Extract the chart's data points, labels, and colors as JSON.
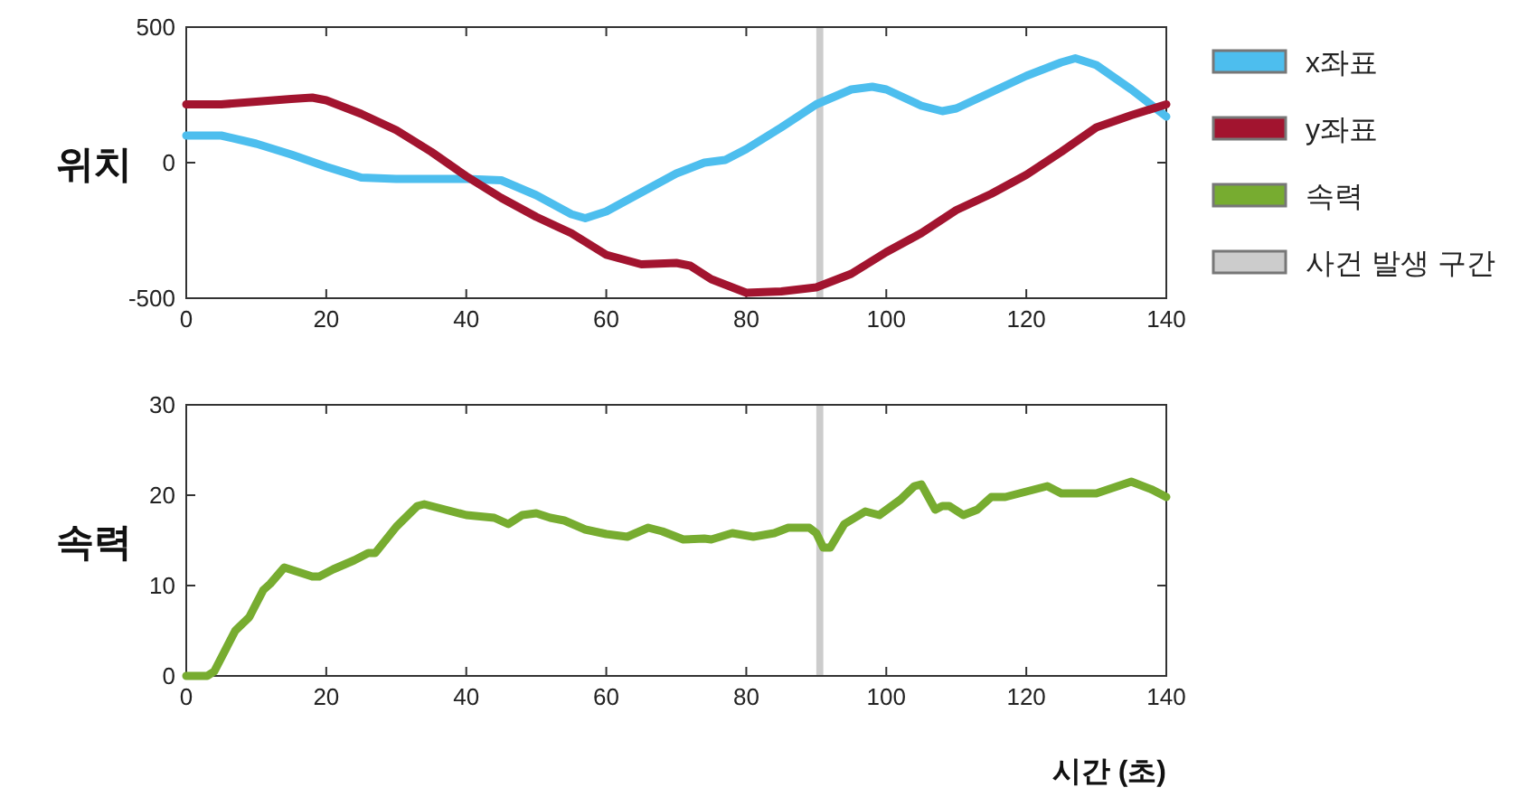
{
  "chart_data": [
    {
      "type": "line",
      "ylabel": "위치",
      "xlim": [
        0,
        140
      ],
      "xticks": [
        0,
        20,
        40,
        60,
        80,
        100,
        120,
        140
      ],
      "ylim": [
        -500,
        500
      ],
      "yticks": [
        -500,
        0,
        500
      ],
      "legend": "right",
      "line_style": "solid",
      "series": [
        {
          "name": "x좌표",
          "color": "#4dbeee",
          "x": [
            0,
            5,
            10,
            15,
            20,
            25,
            30,
            35,
            40,
            45,
            50,
            55,
            57,
            60,
            65,
            70,
            74,
            77,
            80,
            85,
            90,
            95,
            98,
            100,
            105,
            108,
            110,
            115,
            120,
            125,
            127,
            130,
            135,
            140
          ],
          "values": [
            100,
            100,
            70,
            30,
            -15,
            -55,
            -60,
            -60,
            -60,
            -65,
            -120,
            -190,
            -205,
            -180,
            -110,
            -40,
            0,
            10,
            50,
            130,
            215,
            270,
            280,
            270,
            210,
            190,
            200,
            260,
            320,
            370,
            385,
            360,
            270,
            170
          ]
        },
        {
          "name": "y좌표",
          "color": "#a2142f",
          "x": [
            0,
            5,
            10,
            15,
            18,
            20,
            25,
            30,
            35,
            40,
            45,
            50,
            55,
            60,
            65,
            70,
            72,
            75,
            80,
            85,
            90,
            95,
            100,
            105,
            110,
            115,
            120,
            125,
            130,
            135,
            140
          ],
          "values": [
            215,
            215,
            225,
            235,
            240,
            230,
            180,
            120,
            40,
            -50,
            -130,
            -200,
            -260,
            -340,
            -375,
            -370,
            -380,
            -430,
            -480,
            -475,
            -460,
            -410,
            -330,
            -260,
            -175,
            -115,
            -45,
            40,
            130,
            175,
            215
          ]
        }
      ],
      "bands": [
        {
          "axis": "x",
          "from": 90,
          "to": 91,
          "color": "#cccccc"
        }
      ]
    },
    {
      "type": "line",
      "ylabel": "속력",
      "xlabel": "시간 (초)",
      "xlim": [
        0,
        140
      ],
      "xticks": [
        0,
        20,
        40,
        60,
        80,
        100,
        120,
        140
      ],
      "ylim": [
        0,
        30
      ],
      "yticks": [
        0,
        10,
        20,
        30
      ],
      "legend": "right",
      "line_style": "solid",
      "series": [
        {
          "name": "속력",
          "color": "#77ac30",
          "x": [
            0,
            3,
            4,
            7,
            9,
            11,
            12,
            14,
            16,
            18,
            19,
            21,
            24,
            26,
            27,
            30,
            33,
            34,
            36,
            40,
            44,
            46,
            48,
            50,
            52,
            54,
            57,
            60,
            63,
            66,
            68,
            71,
            74,
            75,
            78,
            81,
            84,
            86,
            89,
            90,
            91,
            92,
            94,
            97,
            99,
            102,
            104,
            105,
            107,
            108,
            109,
            111,
            113,
            115,
            117,
            120,
            123,
            125,
            130,
            135,
            138,
            140
          ],
          "values": [
            0,
            0,
            0.5,
            5,
            6.5,
            9.5,
            10.2,
            12,
            11.5,
            11,
            11,
            11.8,
            12.8,
            13.6,
            13.6,
            16.5,
            18.8,
            19,
            18.6,
            17.8,
            17.5,
            16.8,
            17.8,
            18,
            17.5,
            17.2,
            16.2,
            15.7,
            15.4,
            16.4,
            16,
            15.1,
            15.2,
            15.1,
            15.8,
            15.4,
            15.8,
            16.4,
            16.4,
            15.8,
            14.2,
            14.2,
            16.8,
            18.2,
            17.8,
            19.5,
            21,
            21.2,
            18.4,
            18.8,
            18.8,
            17.8,
            18.4,
            19.8,
            19.8,
            20.4,
            21,
            20.2,
            20.2,
            21.5,
            20.6,
            19.8
          ]
        }
      ],
      "bands": [
        {
          "axis": "x",
          "from": 90,
          "to": 91,
          "color": "#cccccc",
          "label": "사건 발생 구간"
        }
      ]
    }
  ]
}
